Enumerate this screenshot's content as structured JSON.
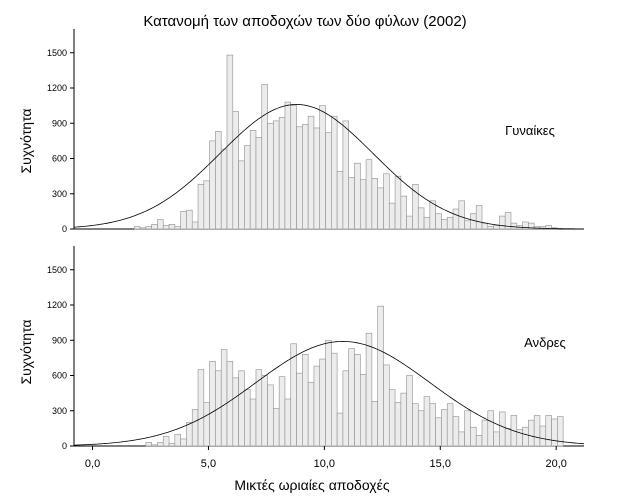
{
  "chart_data": {
    "type": "bar",
    "subtype": "histogram-with-normal-curve",
    "title": "Κατανομή των αποδοχών των δύο φύλων (2002)",
    "xlabel": "Μικτές ωριαίες αποδοχές",
    "ylabel": "Συχνότητα",
    "xlim": [
      -0.8,
      21.2
    ],
    "x_ticks": [
      0,
      5,
      10,
      15,
      20
    ],
    "x_tick_labels": [
      "0,0",
      "5,0",
      "10,0",
      "15,0",
      "20,0"
    ],
    "ylim": [
      0,
      1600
    ],
    "y_ticks": [
      0,
      300,
      600,
      900,
      1200,
      1500
    ],
    "y_tick_labels": [
      "0",
      "300",
      "600",
      "900",
      "1200",
      "1500"
    ],
    "grid": false,
    "bin_width": 0.25,
    "panels": [
      {
        "name": "Γυναίκες",
        "bin_start": 1.8,
        "counts": [
          20,
          10,
          20,
          40,
          80,
          30,
          40,
          20,
          150,
          160,
          60,
          380,
          410,
          750,
          830,
          680,
          1480,
          1000,
          580,
          710,
          840,
          780,
          1230,
          900,
          920,
          950,
          1080,
          1050,
          870,
          890,
          960,
          860,
          1050,
          820,
          960,
          490,
          920,
          440,
          560,
          420,
          590,
          430,
          350,
          470,
          220,
          450,
          280,
          110,
          380,
          180,
          100,
          240,
          130,
          80,
          100,
          170,
          240,
          70,
          130,
          200,
          50,
          20,
          30,
          110,
          140,
          50,
          30,
          60,
          50,
          20,
          20,
          30,
          10
        ],
        "normal_curve": {
          "mean": 8.8,
          "sd": 3.3,
          "peak": 1060
        }
      },
      {
        "name": "Ανδρες",
        "bin_start": 2.3,
        "counts": [
          30,
          10,
          30,
          80,
          20,
          100,
          60,
          200,
          310,
          650,
          370,
          720,
          640,
          820,
          720,
          580,
          640,
          480,
          400,
          650,
          600,
          520,
          320,
          590,
          400,
          870,
          620,
          780,
          540,
          680,
          740,
          900,
          790,
          280,
          640,
          830,
          780,
          610,
          960,
          380,
          1190,
          690,
          480,
          370,
          450,
          600,
          360,
          300,
          420,
          360,
          240,
          310,
          360,
          250,
          120,
          300,
          160,
          90,
          220,
          300,
          120,
          290,
          150,
          260,
          140,
          160,
          220,
          260,
          170,
          260,
          230,
          250
        ],
        "normal_curve": {
          "mean": 10.8,
          "sd": 3.75,
          "peak": 890
        }
      }
    ]
  }
}
